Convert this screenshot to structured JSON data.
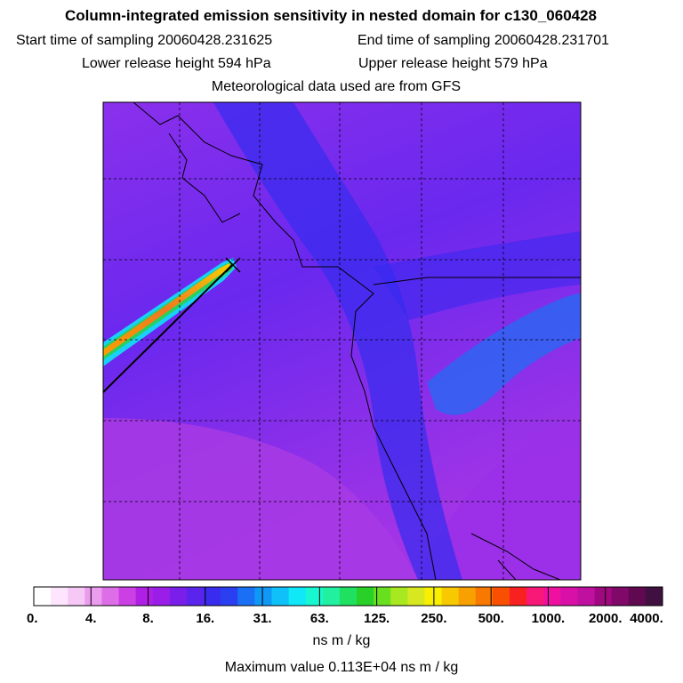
{
  "title": "Column-integrated emission sensitivity in nested domain for c130_060428",
  "start_label": "Start time of sampling 20060428.231625",
  "end_label": "End time of sampling 20060428.231701",
  "lower_label": "Lower release height  594 hPa",
  "upper_label": "Upper release height  579 hPa",
  "met_label": "Meteorological data used are from GFS",
  "unit_label": "ns m / kg",
  "max_label": "Maximum value  0.113E+04 ns m / kg",
  "chart_data": {
    "type": "heatmap",
    "title": "Column-integrated emission sensitivity in nested domain for c130_060428",
    "colorbar": {
      "ticks": [
        "0.",
        "4.",
        "8.",
        "16.",
        "31.",
        "63.",
        "125.",
        "250.",
        "500.",
        "1000.",
        "2000.",
        "4000."
      ],
      "tick_values": [
        0,
        4,
        8,
        16,
        31,
        63,
        125,
        250,
        500,
        1000,
        2000,
        4000
      ],
      "unit": "ns m / kg",
      "colors": [
        "#ffffff",
        "#fde6fd",
        "#f6c8f6",
        "#ec9cee",
        "#de6ee8",
        "#cc3fe4",
        "#b020e4",
        "#9a1ee8",
        "#7a1eea",
        "#5a24ec",
        "#3a2cee",
        "#2a40f0",
        "#1a70f4",
        "#1098f6",
        "#10c0f8",
        "#10e8f8",
        "#18f8d0",
        "#20f0a0",
        "#20e060",
        "#28d028",
        "#68e020",
        "#a8e820",
        "#d8e820",
        "#f8f000",
        "#f8c800",
        "#f8a000",
        "#f87800",
        "#f85000",
        "#f82020",
        "#f81878",
        "#f010a0",
        "#d810a8",
        "#c010a0",
        "#a00880",
        "#800868",
        "#600850",
        "#401040"
      ]
    },
    "maximum_value": 1130,
    "release_point": {
      "note": "x marker"
    },
    "trajectory": "black line from lower-left to release point",
    "gridlines": true
  }
}
